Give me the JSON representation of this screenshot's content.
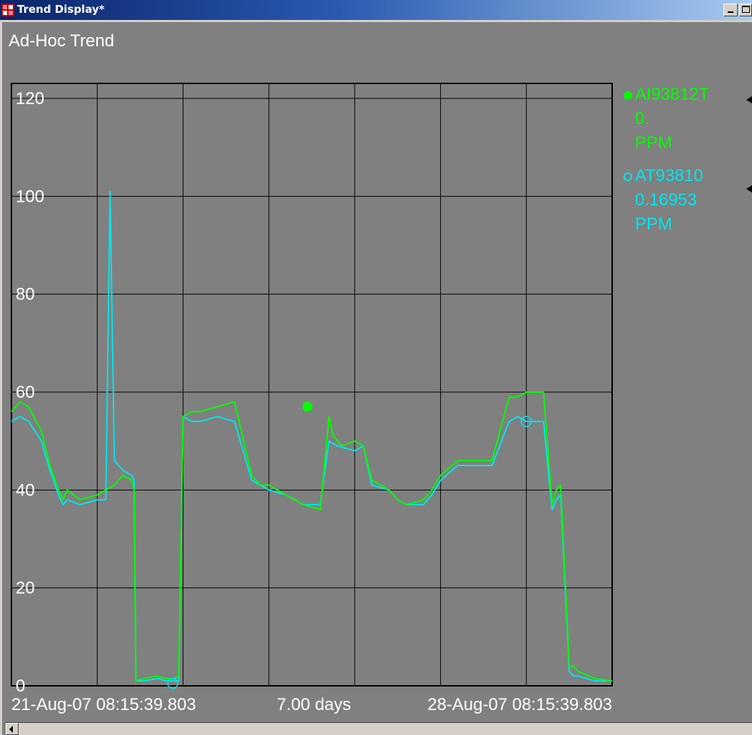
{
  "window": {
    "title": "Trend Display*"
  },
  "trend": {
    "title": "Ad-Hoc Trend"
  },
  "colors": {
    "green": "#00ff00",
    "cyan": "#00e5ee",
    "background": "#808080",
    "grid": "#000000"
  },
  "legend": [
    {
      "tag": "AI93812T",
      "value": "0.",
      "units": "PPM",
      "color": "#00ff00",
      "marker": "filled-circle"
    },
    {
      "tag": "AT93810",
      "value": "0.16953",
      "units": "PPM",
      "color": "#00e5ee",
      "marker": "hollow-circle"
    }
  ],
  "chart_data": {
    "type": "line",
    "title": "Ad-Hoc Trend",
    "xlabels": {
      "start": "21-Aug-07 08:15:39.803",
      "span": "7.00 days",
      "end": "28-Aug-07 08:15:39.803"
    },
    "ylim": [
      0,
      120
    ],
    "yticks": [
      0,
      20,
      40,
      60,
      80,
      100,
      120
    ],
    "xlim": [
      0,
      7
    ],
    "grid": true,
    "legend_position": "right",
    "series": [
      {
        "name": "AI93812T",
        "color": "#00ff00",
        "x": [
          0,
          0.1,
          0.2,
          0.35,
          0.45,
          0.55,
          0.6,
          0.65,
          0.8,
          1.0,
          1.1,
          1.2,
          1.3,
          1.4,
          1.43,
          1.45,
          1.55,
          1.7,
          1.8,
          1.9,
          1.95,
          2.0,
          2.1,
          2.2,
          2.4,
          2.6,
          2.8,
          2.9,
          2.95,
          3.0,
          3.2,
          3.4,
          3.6,
          3.7,
          3.75,
          3.8,
          3.85,
          4.0,
          4.1,
          4.2,
          4.4,
          4.5,
          4.6,
          4.8,
          4.9,
          5.0,
          5.2,
          5.4,
          5.6,
          5.8,
          5.9,
          6.0,
          6.1,
          6.2,
          6.3,
          6.35,
          6.4,
          6.5,
          6.55,
          6.6,
          6.8,
          7.0
        ],
        "y": [
          56,
          58,
          57,
          52,
          45,
          40,
          38,
          40,
          38,
          39,
          40,
          41,
          43,
          42,
          40,
          1,
          1.5,
          2,
          1.5,
          1.5,
          2,
          55,
          56,
          56,
          57,
          58,
          43,
          41,
          41,
          41,
          39,
          37,
          36,
          55,
          51,
          50,
          49,
          50,
          49,
          42,
          40,
          38,
          37,
          38,
          40,
          43,
          46,
          46,
          46,
          59,
          59,
          60,
          60,
          60,
          37,
          40,
          41,
          4,
          4,
          3,
          1.5,
          1
        ]
      },
      {
        "name": "AT93810",
        "color": "#00e5ee",
        "x": [
          0,
          0.1,
          0.2,
          0.35,
          0.45,
          0.55,
          0.6,
          0.65,
          0.8,
          1.0,
          1.1,
          1.15,
          1.2,
          1.25,
          1.3,
          1.4,
          1.43,
          1.45,
          1.55,
          1.7,
          1.8,
          1.9,
          1.95,
          2.0,
          2.1,
          2.2,
          2.4,
          2.6,
          2.8,
          2.9,
          3.0,
          3.2,
          3.4,
          3.6,
          3.7,
          3.8,
          4.0,
          4.1,
          4.2,
          4.4,
          4.5,
          4.6,
          4.8,
          4.9,
          5.0,
          5.2,
          5.4,
          5.6,
          5.8,
          5.9,
          6.0,
          6.1,
          6.2,
          6.3,
          6.35,
          6.4,
          6.5,
          6.55,
          6.6,
          6.8,
          7.0
        ],
        "y": [
          54,
          55,
          54,
          50,
          44,
          39,
          37,
          38,
          37,
          38,
          38,
          101,
          46,
          45,
          44,
          43,
          42,
          1,
          1,
          1.5,
          1,
          1,
          1,
          55,
          54,
          54,
          55,
          54,
          42,
          41,
          40,
          39,
          37,
          37,
          50,
          49,
          48,
          49,
          41,
          40,
          38,
          37,
          37,
          39,
          42,
          45,
          45,
          45,
          54,
          55,
          54,
          54,
          54,
          36,
          38,
          39,
          3,
          2,
          2,
          1,
          1
        ]
      }
    ],
    "markers": [
      {
        "series": "AI93812T",
        "x": 3.45,
        "y": 57,
        "style": "filled-circle"
      },
      {
        "series": "AT93810",
        "x": 6.0,
        "y": 54,
        "style": "hollow-circle"
      },
      {
        "series": "AT93810",
        "x": 1.88,
        "y": 0.5,
        "style": "hollow-circle"
      }
    ]
  }
}
